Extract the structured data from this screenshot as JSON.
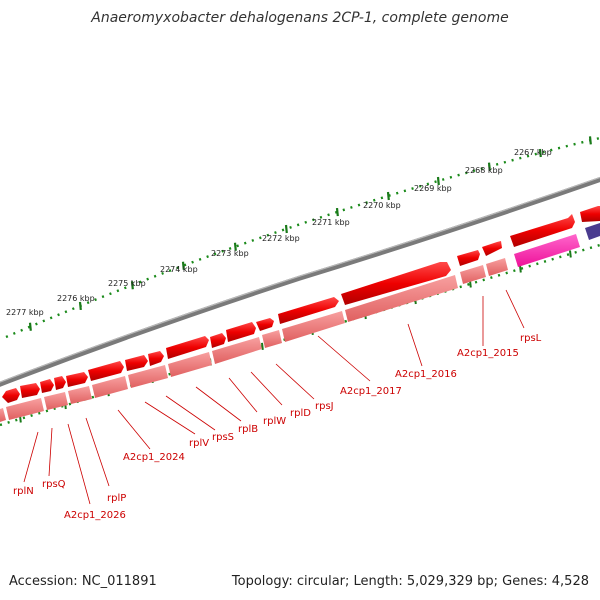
{
  "header": {
    "title": "Anaeromyxobacter dehalogenans 2CP-1, complete genome"
  },
  "footer": {
    "accession": "Accession: NC_011891",
    "summary": "Topology: circular; Length: 5,029,329 bp; Genes: 4,528"
  },
  "ruler": {
    "unit_labels": [
      "2267 kbp",
      "2268 kbp",
      "2269 kbp",
      "2270 kbp",
      "2271 kbp",
      "2272 kbp",
      "2273 kbp",
      "2274 kbp",
      "2275 kbp",
      "2276 kbp",
      "2277 kbp"
    ]
  },
  "genes": {
    "labels": [
      "rpsL",
      "A2cp1_2015",
      "A2cp1_2016",
      "A2cp1_2017",
      "rpsJ",
      "rplD",
      "rplW",
      "rplB",
      "rpsS",
      "rplV",
      "A2cp1_2024",
      "rplP",
      "A2cp1_2026",
      "rpsQ",
      "rplN"
    ]
  },
  "colors": {
    "backbone": "#7a7a7a",
    "cds_forward": "#ee0000",
    "cds_pink": "#f08080",
    "rna_magenta": "#ff33aa",
    "other_gene": "#4a3b8f",
    "ticks": "#1a7a1a",
    "label_text": "#cc0000"
  }
}
